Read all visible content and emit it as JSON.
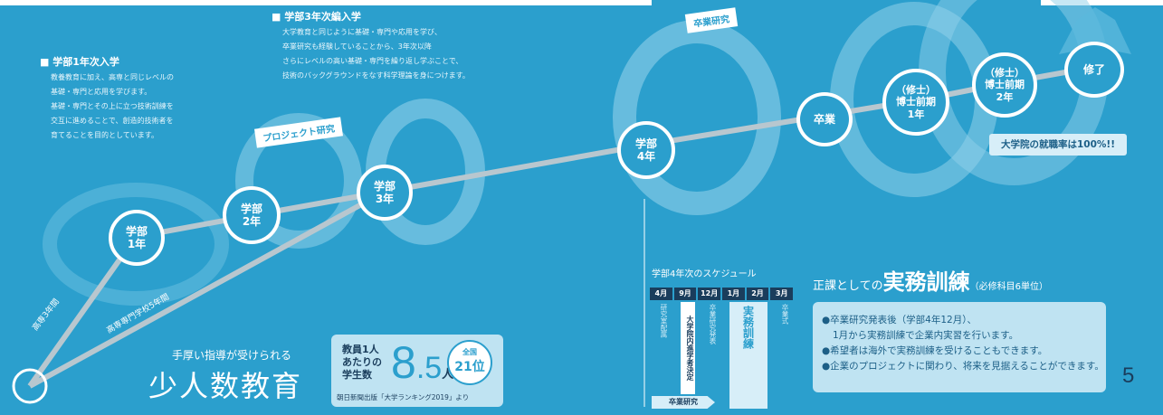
{
  "page_number": "5",
  "intro_year1": {
    "title": "■ 学部1年次入学",
    "lines": [
      "教養教育に加え、高専と同じレベルの",
      "基礎・専門と応用を学びます。",
      "基礎・専門とその上に立つ技術訓練を",
      "交互に進めることで、創造的技術者を",
      "育てることを目的としています。"
    ]
  },
  "intro_year3": {
    "title": "■ 学部3年次編入学",
    "lines": [
      "大学教育と同じように基礎・専門や応用を学び、",
      "卒業研究も経験していることから、3年次以降",
      "さらにレベルの高い基礎・専門を繰り返し学ぶことで、",
      "技術のバックグラウンドをなす科学理論を身につけます。"
    ]
  },
  "tags": {
    "project": "プロジェクト研究",
    "graduation": "卒業研究"
  },
  "nodes": {
    "u1": [
      "学部",
      "1年"
    ],
    "u2": [
      "学部",
      "2年"
    ],
    "u3": [
      "学部",
      "3年"
    ],
    "u4": [
      "学部",
      "4年"
    ],
    "grad": [
      "卒業"
    ],
    "m1": [
      "（修士）",
      "博士前期",
      "1年"
    ],
    "m2": [
      "（修士）",
      "博士前期",
      "2年"
    ],
    "done": [
      "修了"
    ]
  },
  "paths": {
    "kosen3": "高専3年間",
    "kosen5": "高専専門学校5年間"
  },
  "employment": "大学院の就職率は100%!!",
  "small_class": {
    "lead": "手厚い指導が受けられる",
    "title": "少人数教育"
  },
  "ratio": {
    "label_lines": [
      "教員1人",
      "あたりの",
      "学生数"
    ],
    "value_int": "8",
    "value_dec": ".5",
    "unit": "人",
    "rank_label": "全国",
    "rank_value": "21位",
    "source": "朝日新聞出版「大学ランキング2019」より"
  },
  "schedule": {
    "title": "学部4年次のスケジュール",
    "months": [
      "4月",
      "9月",
      "12月",
      "1月",
      "2月",
      "3月"
    ],
    "items": [
      "研究室配属",
      "大学院内進学者決定",
      "卒業研究発表",
      "実務訓練",
      "卒業式"
    ],
    "bar_label": "卒業研究"
  },
  "training": {
    "prefix": "正課としての",
    "title": "実務訓練",
    "note": "（必修科目6単位）",
    "bullets": [
      "●卒業研究発表後（学部4年12月）、",
      "1月から実務訓練で企業内実習を行います。",
      "●希望者は海外で実務訓練を受けることもできます。",
      "●企業のプロジェクトに関わり、将来を見据えることができます。"
    ]
  }
}
